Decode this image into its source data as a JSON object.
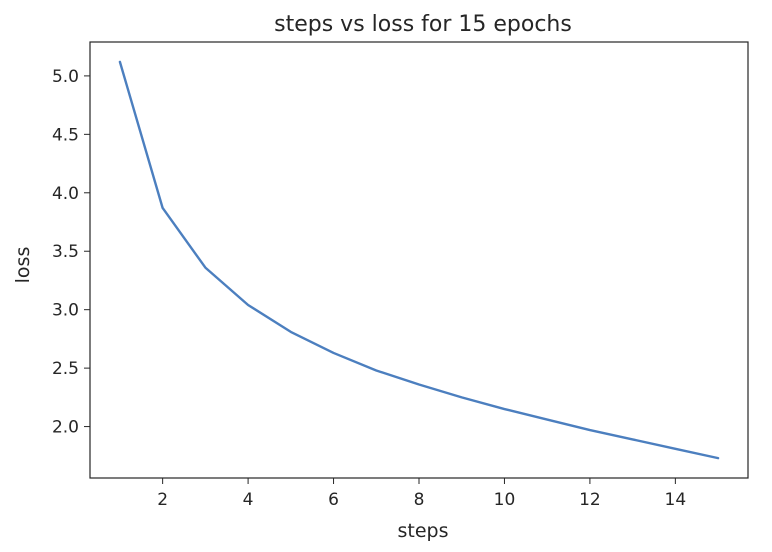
{
  "chart_data": {
    "type": "line",
    "title": "steps vs loss for 15 epochs",
    "xlabel": "steps",
    "ylabel": "loss",
    "x": [
      1,
      2,
      3,
      4,
      5,
      6,
      7,
      8,
      9,
      10,
      11,
      12,
      13,
      14,
      15
    ],
    "series": [
      {
        "values": [
          5.12,
          3.87,
          3.36,
          3.04,
          2.81,
          2.63,
          2.48,
          2.36,
          2.25,
          2.15,
          2.06,
          1.97,
          1.89,
          1.81,
          1.73
        ],
        "color": "#4c7fbf"
      }
    ],
    "xlim": [
      0.3,
      15.7
    ],
    "ylim": [
      1.56,
      5.29
    ],
    "xticks": [
      2,
      4,
      6,
      8,
      10,
      12,
      14
    ],
    "xtick_labels": [
      "2",
      "4",
      "6",
      "8",
      "10",
      "12",
      "14"
    ],
    "yticks": [
      2.0,
      2.5,
      3.0,
      3.5,
      4.0,
      4.5,
      5.0
    ],
    "ytick_labels": [
      "2.0",
      "2.5",
      "3.0",
      "3.5",
      "4.0",
      "4.5",
      "5.0"
    ],
    "grid": false,
    "legend": false
  }
}
